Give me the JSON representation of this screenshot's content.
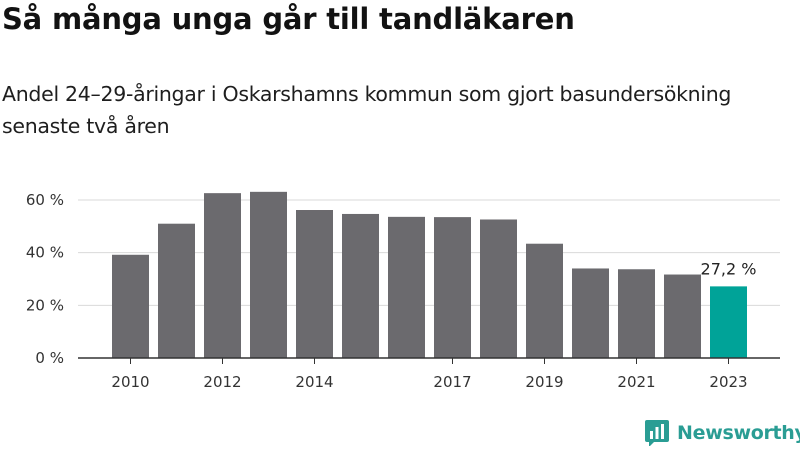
{
  "header": {
    "title": "Så många unga går till tandläkaren",
    "subtitle": "Andel 24–29-åringar i Oskarshamns kommun som gjort basundersökning senaste två åren"
  },
  "brand": {
    "name": "Newsworthy",
    "logo_icon": "newsworthy-chart-logo-icon",
    "color": "#2a9d94"
  },
  "chart_data": {
    "type": "bar",
    "categories": [
      "2010",
      "2011",
      "2012",
      "2013",
      "2014",
      "2015",
      "2016",
      "2017",
      "2018",
      "2019",
      "2020",
      "2021",
      "2022",
      "2023"
    ],
    "values": [
      39.2,
      51.0,
      62.6,
      63.1,
      56.2,
      54.7,
      53.6,
      53.5,
      52.6,
      43.4,
      34.0,
      33.7,
      31.7,
      27.2
    ],
    "x_tick_labels": [
      "2010",
      "",
      "2012",
      "",
      "2014",
      "",
      "",
      "2017",
      "",
      "2019",
      "",
      "2021",
      "",
      "2023"
    ],
    "y_ticks": [
      0,
      20,
      40,
      60
    ],
    "y_tick_labels": [
      "0 %",
      "20 %",
      "40 %",
      "60 %"
    ],
    "ylim": [
      0,
      68
    ],
    "highlight_index": 13,
    "highlight_label": "27,2 %",
    "bar_color": "#6b6a6e",
    "highlight_color": "#00a398",
    "grid": true,
    "grid_color": "#d9d9d9",
    "axis_color": "#333333"
  }
}
